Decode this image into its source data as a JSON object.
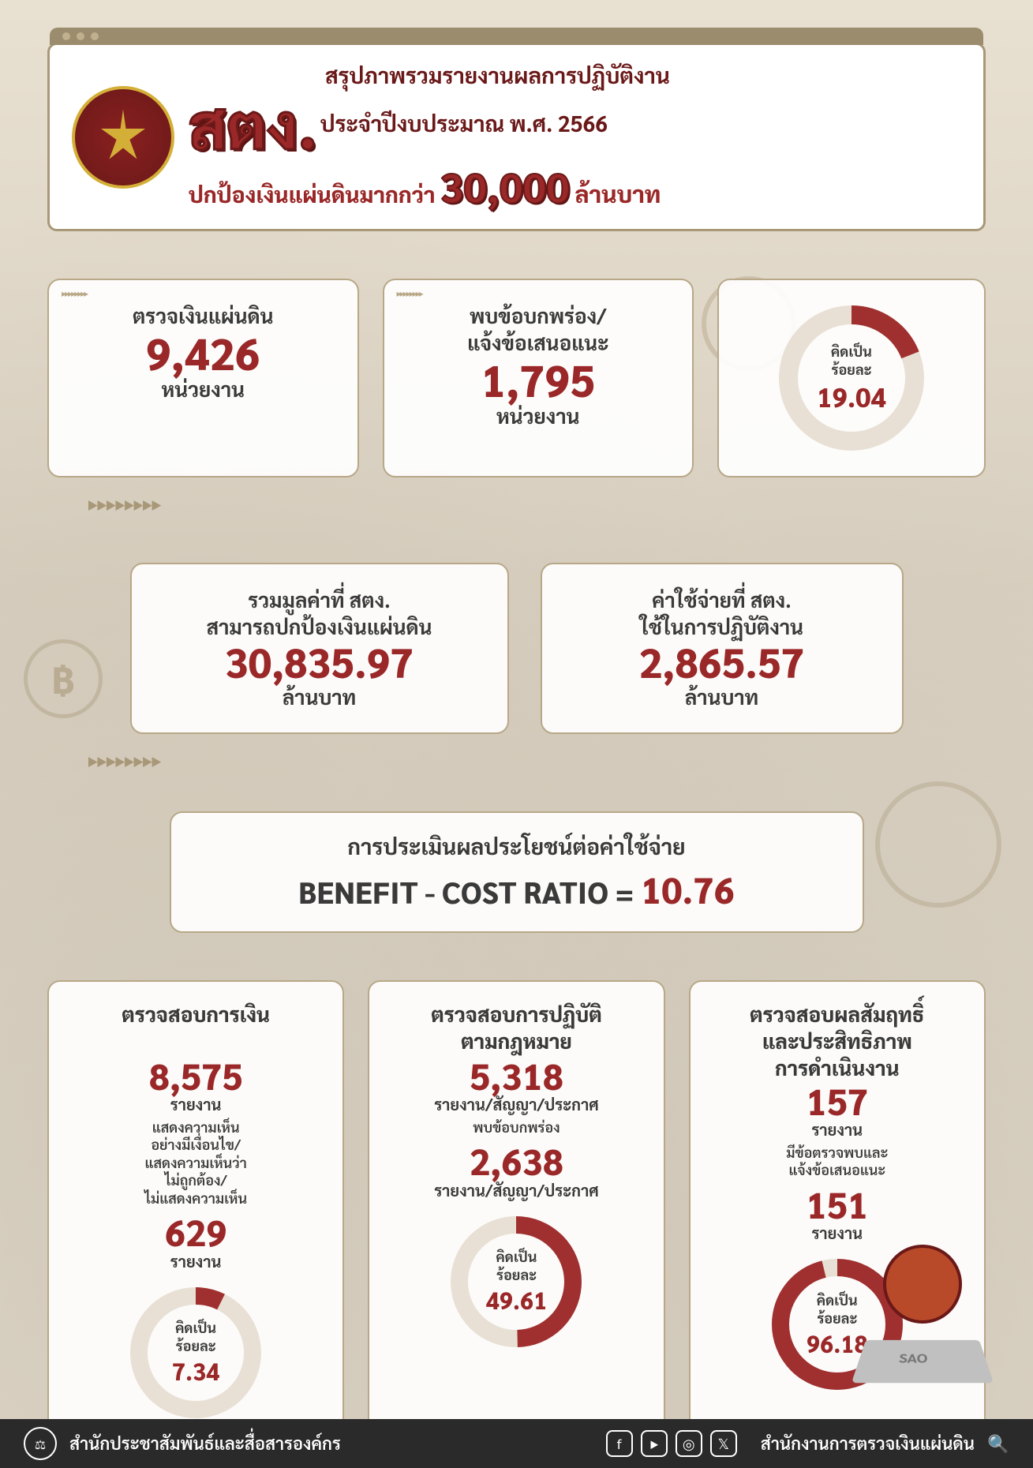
{
  "colors": {
    "accent": "#9a2828",
    "accent_dark": "#6a1818",
    "box_border": "#b8a888",
    "text": "#3a3a3a",
    "donut_track": "#e8e0d4",
    "donut_fill": "#a03030",
    "footer_bg": "#2a2a2a"
  },
  "header": {
    "org_abbrev": "สตง.",
    "subtitle_line1": "สรุปภาพรวมรายงานผลการปฏิบัติงาน",
    "subtitle_line2": "ประจำปีงบประมาณ พ.ศ. 2566",
    "tagline_prefix": "ปกป้องเงินแผ่นดินมากกว่า",
    "tagline_value": "30,000",
    "tagline_unit": "ล้านบาท"
  },
  "stats": {
    "audited": {
      "label": "ตรวจเงินแผ่นดิน",
      "value": "9,426",
      "unit": "หน่วยงาน"
    },
    "findings": {
      "label1": "พบข้อบกพร่อง/",
      "label2": "แจ้งข้อเสนอแนะ",
      "value": "1,795",
      "unit": "หน่วยงาน"
    },
    "findings_pct": {
      "label1": "คิดเป็น",
      "label2": "ร้อยละ",
      "value": "19.04",
      "percent": 19.04
    },
    "protected": {
      "label1": "รวมมูลค่าที่ สตง.",
      "label2": "สามารถปกป้องเงินแผ่นดิน",
      "value": "30,835.97",
      "unit": "ล้านบาท"
    },
    "cost": {
      "label1": "ค่าใช้จ่ายที่ สตง.",
      "label2": "ใช้ในการปฏิบัติงาน",
      "value": "2,865.57",
      "unit": "ล้านบาท"
    }
  },
  "bc_ratio": {
    "title": "การประเมินผลประโยชน์ต่อค่าใช้จ่าย",
    "label": "BENEFIT - COST RATIO =",
    "value": "10.76"
  },
  "columns": {
    "col1": {
      "title": "ตรวจสอบการเงิน",
      "v1": "8,575",
      "u1": "รายงาน",
      "note": "แสดงความเห็น\nอย่างมีเงื่อนไข/\nแสดงความเห็นว่า\nไม่ถูกต้อง/\nไม่แสดงความเห็น",
      "v2": "629",
      "u2": "รายงาน",
      "pct_label1": "คิดเป็น",
      "pct_label2": "ร้อยละ",
      "pct": "7.34",
      "percent": 7.34
    },
    "col2": {
      "title": "ตรวจสอบการปฏิบัติ\nตามกฎหมาย",
      "v1": "5,318",
      "u1": "รายงาน/สัญญา/ประกาศ",
      "note": "พบข้อบกพร่อง",
      "v2": "2,638",
      "u2": "รายงาน/สัญญา/ประกาศ",
      "pct_label1": "คิดเป็น",
      "pct_label2": "ร้อยละ",
      "pct": "49.61",
      "percent": 49.61
    },
    "col3": {
      "title": "ตรวจสอบผลสัมฤทธิ์\nและประสิทธิภาพ\nการดำเนินงาน",
      "v1": "157",
      "u1": "รายงาน",
      "note": "มีข้อตรวจพบและ\nแจ้งข้อเสนอแนะ",
      "v2": "151",
      "u2": "รายงาน",
      "pct_label1": "คิดเป็น",
      "pct_label2": "ร้อยละ",
      "pct": "96.18",
      "percent": 96.18
    }
  },
  "footer": {
    "left": "สำนักประชาสัมพันธ์และสื่อสารองค์กร",
    "right": "สำนักงานการตรวจเงินแผ่นดิน"
  },
  "donut_style": {
    "radius": 80,
    "stroke_width": 24,
    "small_radius": 72,
    "small_stroke": 22
  }
}
